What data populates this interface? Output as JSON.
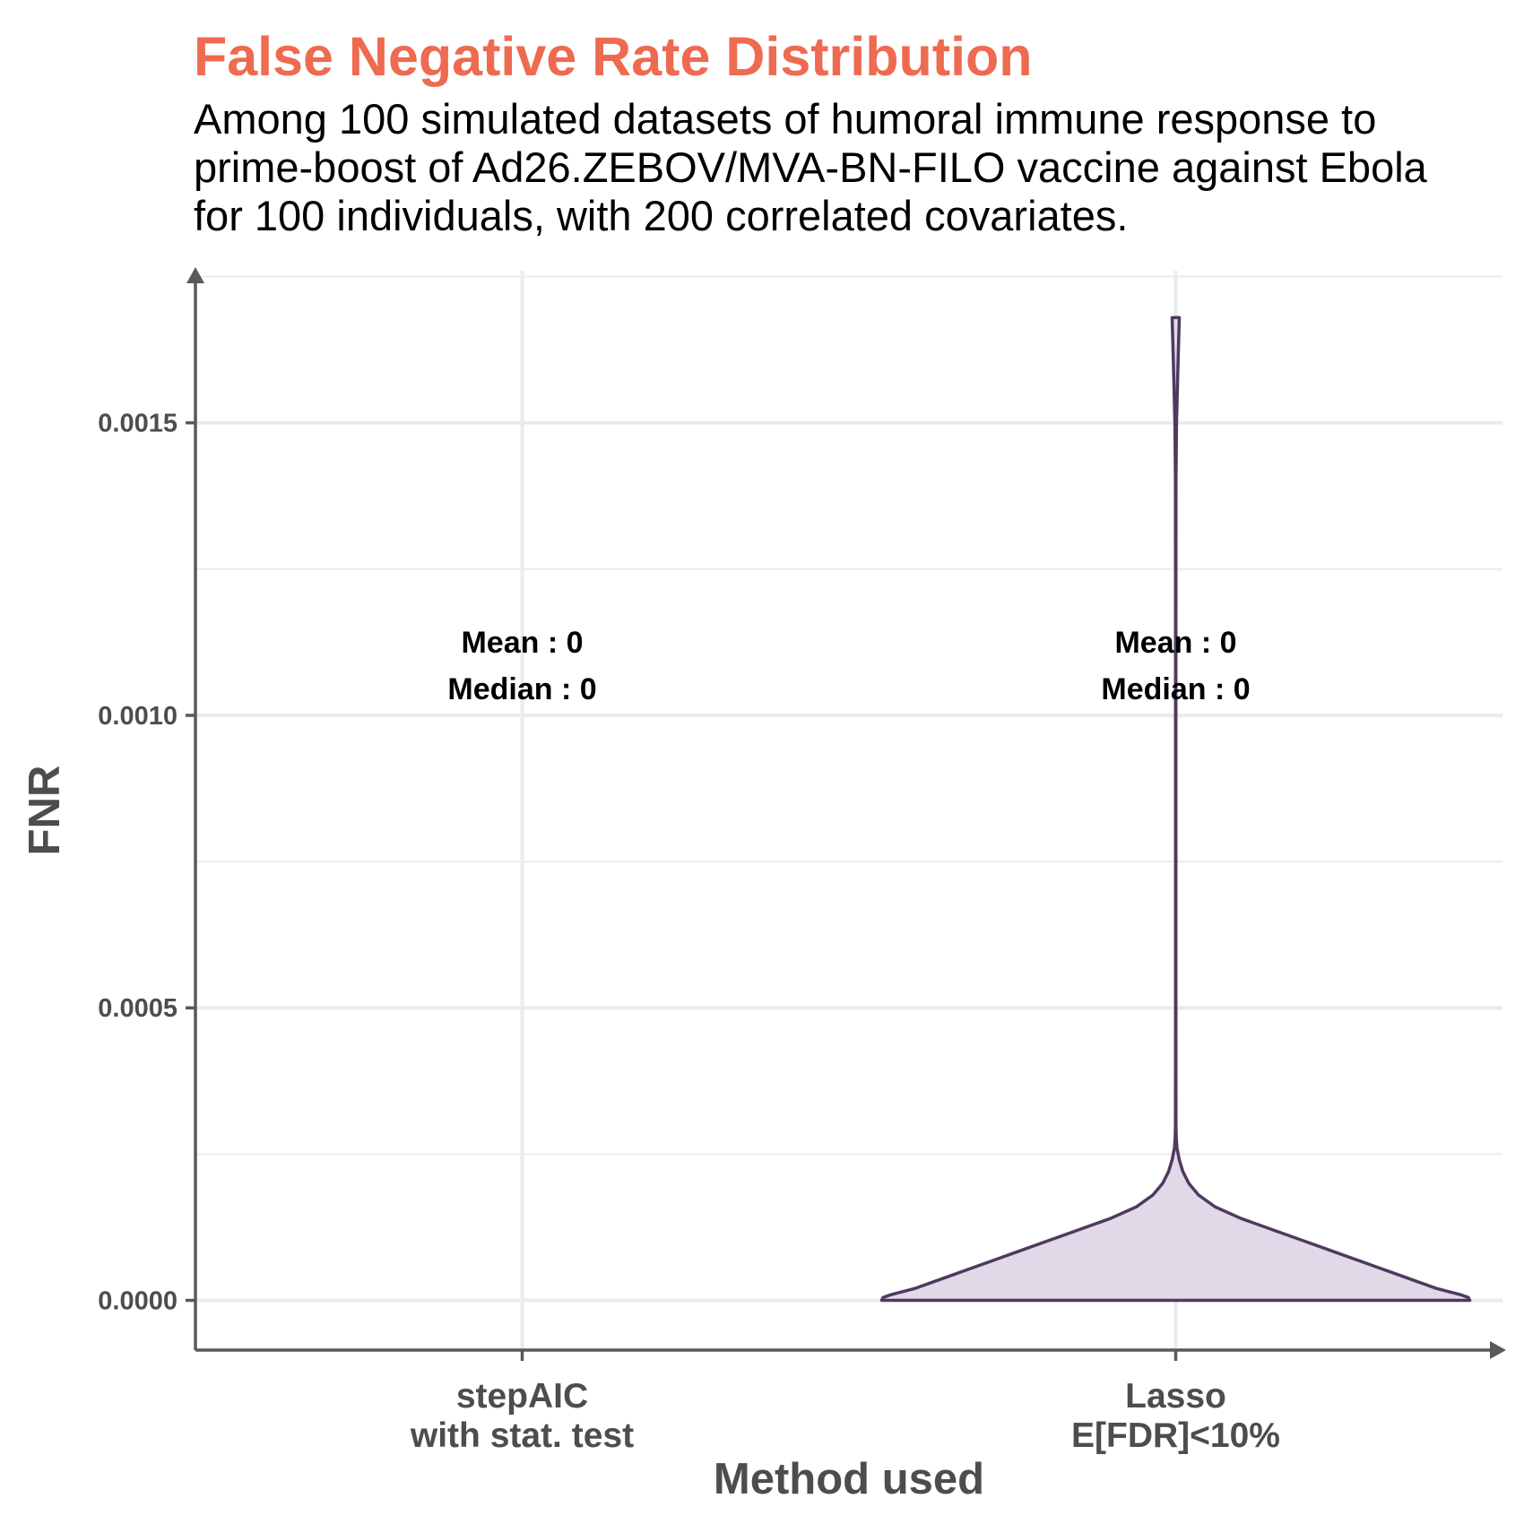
{
  "chart_data": {
    "type": "violin",
    "title": "False Negative Rate Distribution",
    "subtitle": [
      "Among 100 simulated datasets of humoral immune response to",
      "prime-boost of Ad26.ZEBOV/MVA-BN-FILO vaccine against Ebola",
      "for 100 individuals, with 200 correlated covariates."
    ],
    "xlabel": "Method used",
    "ylabel": "FNR",
    "ylim": [
      -8.5e-05,
      0.00176
    ],
    "y_ticks": [
      {
        "value": 0,
        "label": "0.0000"
      },
      {
        "value": 0.0005,
        "label": "0.0005"
      },
      {
        "value": 0.001,
        "label": "0.0010"
      },
      {
        "value": 0.0015,
        "label": "0.0015"
      }
    ],
    "y_minor": [
      0.00025,
      0.00075,
      0.00125,
      0.00175
    ],
    "grid": true,
    "categories": [
      {
        "name": [
          "stepAIC",
          "with stat. test"
        ],
        "annotation": [
          "Mean : 0",
          "Median : 0"
        ],
        "violin": null
      },
      {
        "name": [
          "Lasso",
          "E[FDR]<10%"
        ],
        "annotation": [
          "Mean : 0",
          "Median : 0"
        ],
        "violin": {
          "fill": "#E2D9E8",
          "stroke": "#4F3A5E",
          "profile": [
            [
              0,
              0.9
            ],
            [
              5e-06,
              0.895
            ],
            [
              1e-05,
              0.87
            ],
            [
              2e-05,
              0.8
            ],
            [
              4e-05,
              0.7
            ],
            [
              6e-05,
              0.6
            ],
            [
              8e-05,
              0.5
            ],
            [
              0.0001,
              0.4
            ],
            [
              0.00012,
              0.3
            ],
            [
              0.00014,
              0.2
            ],
            [
              0.00016,
              0.12
            ],
            [
              0.00018,
              0.07
            ],
            [
              0.0002,
              0.04
            ],
            [
              0.00022,
              0.022
            ],
            [
              0.00024,
              0.011
            ],
            [
              0.00026,
              0.004
            ],
            [
              0.00028,
              0.0015
            ],
            [
              0.0003,
              0.0008
            ],
            [
              0.0005,
              0.0006
            ],
            [
              0.0008,
              0.0006
            ],
            [
              0.0011,
              0.0006
            ],
            [
              0.0014,
              0.0008
            ],
            [
              0.0015,
              0.0025
            ],
            [
              0.0016,
              0.007
            ],
            [
              0.00168,
              0.011
            ],
            [
              0.00168,
              0
            ]
          ]
        }
      }
    ]
  }
}
